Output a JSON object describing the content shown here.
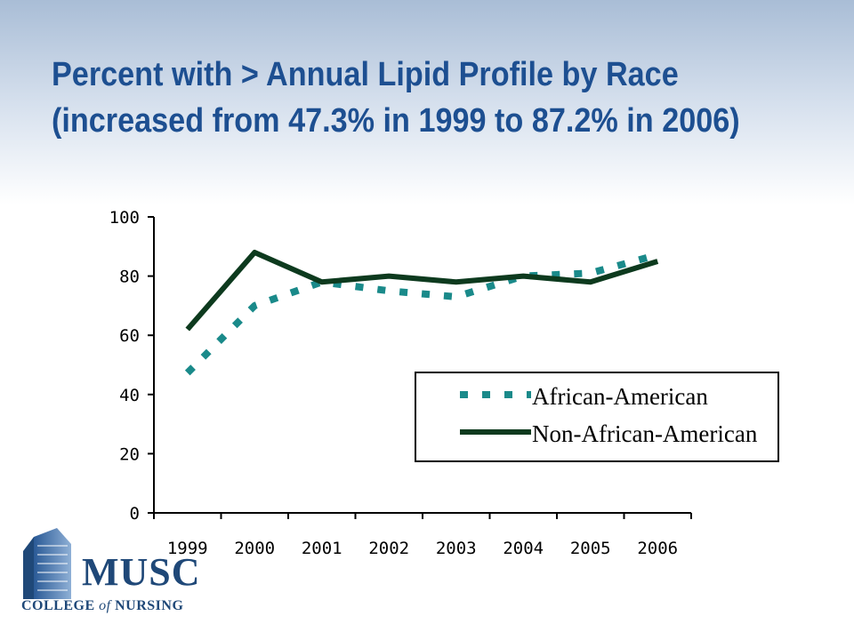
{
  "title": {
    "line1": "Percent with > Annual Lipid Profile by Race",
    "line2": "(increased from 47.3% in 1999 to 87.2% in 2006)"
  },
  "chart_data": {
    "type": "line",
    "categories": [
      "1999",
      "2000",
      "2001",
      "2002",
      "2003",
      "2004",
      "2005",
      "2006"
    ],
    "series": [
      {
        "name": "African-American",
        "values": [
          47.3,
          70,
          78,
          75,
          73,
          80,
          81,
          87.2
        ],
        "color": "#1a8a8a",
        "style": "dotted"
      },
      {
        "name": "Non-African-American",
        "values": [
          62,
          88,
          78,
          80,
          78,
          80,
          78,
          85
        ],
        "color": "#0d3a1e",
        "style": "solid"
      }
    ],
    "ylim": [
      0,
      100
    ],
    "yticks": [
      0,
      20,
      40,
      60,
      80,
      100
    ],
    "legend_position": "right",
    "grid": false
  },
  "logo": {
    "word": "MUSC",
    "sub_prefix": "COLLEGE",
    "sub_of": "of",
    "sub_suffix": "NURSING"
  }
}
